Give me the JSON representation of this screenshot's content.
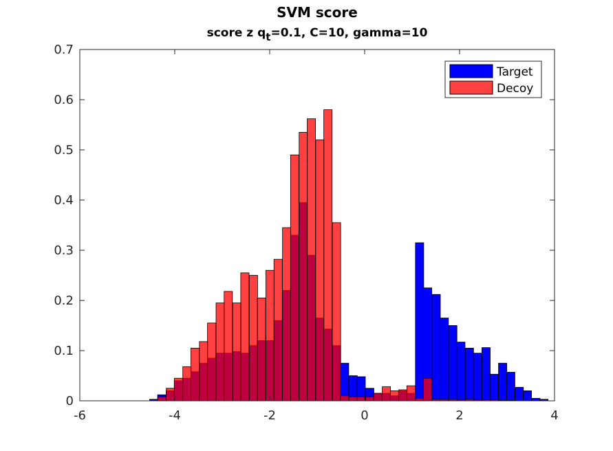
{
  "chart_data": {
    "type": "bar",
    "title": "SVM score",
    "subtitle": {
      "prefix": "score  z q",
      "subscript": "t",
      "suffix": "=0.1, C=10, gamma=10"
    },
    "xlim": [
      -6,
      4
    ],
    "ylim": [
      0,
      0.7
    ],
    "xticks": [
      "-6",
      "-4",
      "-2",
      "0",
      "2",
      "4"
    ],
    "yticks": [
      "0",
      "0.1",
      "0.2",
      "0.3",
      "0.4",
      "0.5",
      "0.6",
      "0.7"
    ],
    "bin_width": 0.175,
    "grid": false,
    "legend_position": "top-right",
    "series": [
      {
        "name": "Target",
        "color": "#0000ff",
        "opacity": 1,
        "bins": [
          [
            -4.53,
            0.003
          ],
          [
            -4.36,
            0.012
          ],
          [
            -4.18,
            0.02
          ],
          [
            -4.01,
            0.04
          ],
          [
            -3.83,
            0.045
          ],
          [
            -3.66,
            0.058
          ],
          [
            -3.48,
            0.075
          ],
          [
            -3.31,
            0.085
          ],
          [
            -3.13,
            0.095
          ],
          [
            -2.96,
            0.095
          ],
          [
            -2.78,
            0.098
          ],
          [
            -2.61,
            0.095
          ],
          [
            -2.43,
            0.11
          ],
          [
            -2.26,
            0.12
          ],
          [
            -2.08,
            0.12
          ],
          [
            -1.91,
            0.16
          ],
          [
            -1.73,
            0.22
          ],
          [
            -1.56,
            0.33
          ],
          [
            -1.38,
            0.395
          ],
          [
            -1.21,
            0.29
          ],
          [
            -1.03,
            0.165
          ],
          [
            -0.86,
            0.143
          ],
          [
            -0.68,
            0.11
          ],
          [
            -0.51,
            0.075
          ],
          [
            -0.33,
            0.05
          ],
          [
            -0.16,
            0.048
          ],
          [
            0.02,
            0.025
          ],
          [
            0.19,
            0.015
          ],
          [
            0.37,
            0.015
          ],
          [
            0.54,
            0.01
          ],
          [
            0.72,
            0.02
          ],
          [
            0.89,
            0.015
          ],
          [
            1.07,
            0.315
          ],
          [
            1.24,
            0.225
          ],
          [
            1.42,
            0.212
          ],
          [
            1.59,
            0.165
          ],
          [
            1.77,
            0.15
          ],
          [
            1.94,
            0.117
          ],
          [
            2.12,
            0.105
          ],
          [
            2.29,
            0.095
          ],
          [
            2.47,
            0.106
          ],
          [
            2.64,
            0.053
          ],
          [
            2.82,
            0.075
          ],
          [
            2.99,
            0.057
          ],
          [
            3.17,
            0.027
          ],
          [
            3.34,
            0.02
          ],
          [
            3.52,
            0.005
          ],
          [
            3.69,
            0.003
          ]
        ]
      },
      {
        "name": "Decoy",
        "color": "#ff0000",
        "opacity": 0.75,
        "bins": [
          [
            -4.36,
            0.008
          ],
          [
            -4.18,
            0.025
          ],
          [
            -4.01,
            0.045
          ],
          [
            -3.83,
            0.068
          ],
          [
            -3.66,
            0.105
          ],
          [
            -3.48,
            0.118
          ],
          [
            -3.31,
            0.155
          ],
          [
            -3.13,
            0.195
          ],
          [
            -2.96,
            0.218
          ],
          [
            -2.78,
            0.195
          ],
          [
            -2.61,
            0.255
          ],
          [
            -2.43,
            0.25
          ],
          [
            -2.26,
            0.205
          ],
          [
            -2.08,
            0.26
          ],
          [
            -1.91,
            0.282
          ],
          [
            -1.73,
            0.345
          ],
          [
            -1.56,
            0.49
          ],
          [
            -1.38,
            0.535
          ],
          [
            -1.21,
            0.562
          ],
          [
            -1.03,
            0.52
          ],
          [
            -0.86,
            0.58
          ],
          [
            -0.68,
            0.355
          ],
          [
            -0.51,
            0.01
          ],
          [
            -0.33,
            0.008
          ],
          [
            -0.16,
            0.008
          ],
          [
            0.02,
            0.008
          ],
          [
            0.19,
            0.015
          ],
          [
            0.37,
            0.028
          ],
          [
            0.54,
            0.02
          ],
          [
            0.72,
            0.022
          ],
          [
            0.89,
            0.03
          ],
          [
            1.07,
            0.005
          ],
          [
            1.24,
            0.045
          ],
          [
            1.42,
            0.003
          ],
          [
            1.59,
            0.003
          ],
          [
            1.77,
            0.003
          ],
          [
            1.94,
            0.002
          ],
          [
            2.12,
            0.003
          ],
          [
            2.29,
            0.002
          ],
          [
            2.47,
            0.002
          ],
          [
            2.64,
            0.002
          ],
          [
            2.82,
            0.001
          ],
          [
            2.99,
            0.001
          ]
        ]
      }
    ]
  }
}
